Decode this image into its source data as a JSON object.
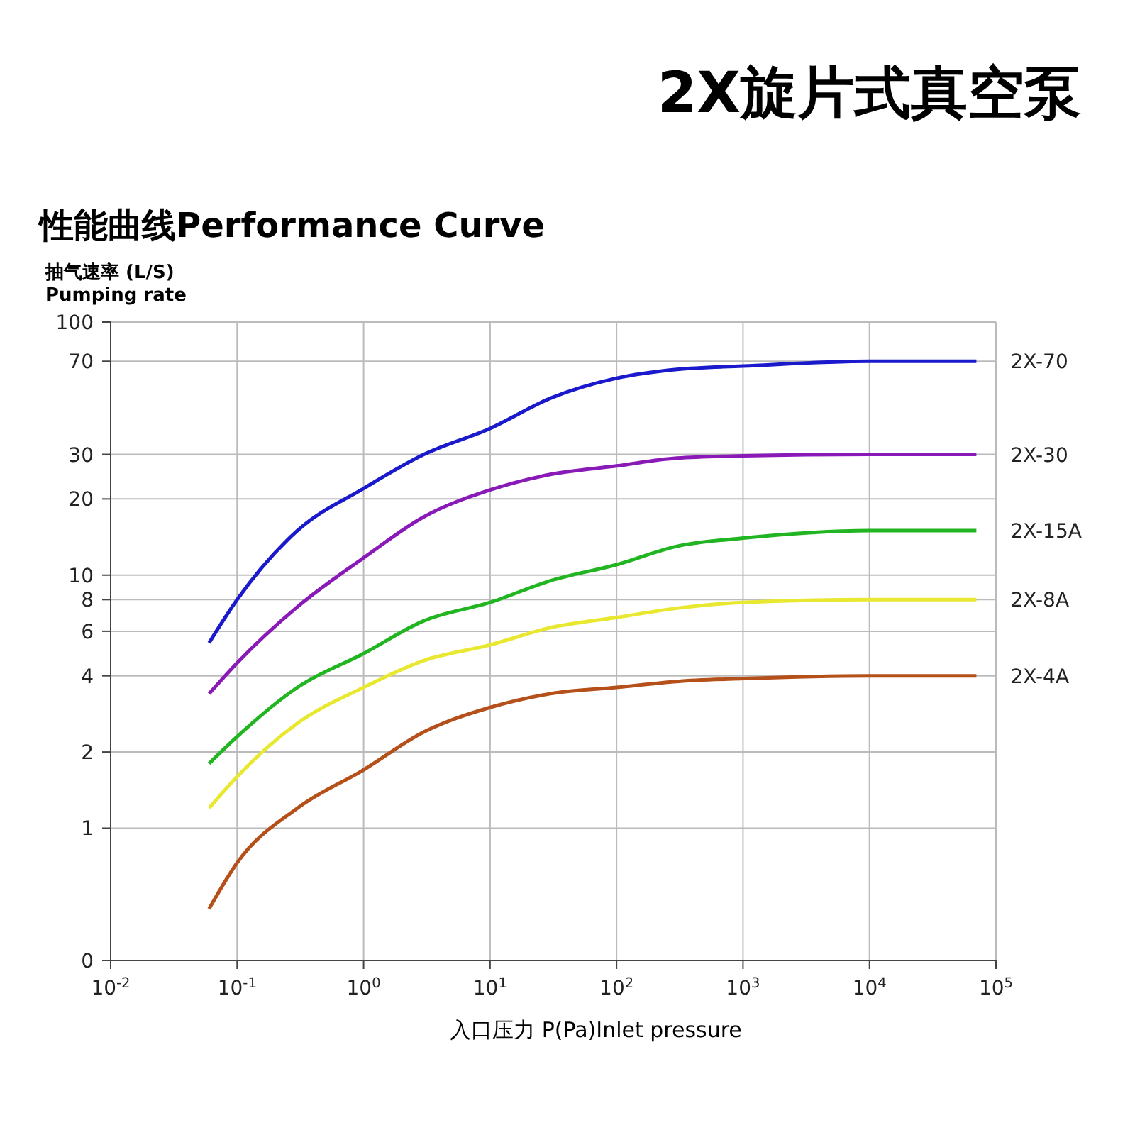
{
  "chart_data": {
    "type": "line",
    "title": "2X旋片式真空泵",
    "subtitle": "性能曲线Performance Curve",
    "xlabel": "入口压力 P(Pa)Inlet pressure",
    "ylabel": "抽气速率 (L/S)\nPumping rate",
    "x": [
      0.06,
      0.1,
      0.3,
      1,
      3,
      10,
      30,
      100,
      300,
      1000,
      10000,
      70000
    ],
    "series": [
      {
        "name": "2X-70",
        "color": "#1a1acc",
        "values": [
          5.4,
          8,
          15,
          22,
          30,
          38,
          50,
          60,
          65,
          67,
          70,
          70
        ]
      },
      {
        "name": "2X-30",
        "color": "#8a1ab8",
        "values": [
          3.4,
          4.5,
          7.5,
          11.7,
          17,
          21.7,
          25,
          27,
          29,
          29.6,
          30,
          30
        ]
      },
      {
        "name": "2X-15A",
        "color": "#22b522",
        "values": [
          1.8,
          2.3,
          3.6,
          4.9,
          6.6,
          7.8,
          9.5,
          11,
          13,
          14,
          15,
          15
        ]
      },
      {
        "name": "2X-8A",
        "color": "#e8e830",
        "values": [
          1.2,
          1.6,
          2.6,
          3.6,
          4.6,
          5.3,
          6.2,
          6.8,
          7.4,
          7.8,
          8,
          8
        ]
      },
      {
        "name": "2X-4A",
        "color": "#b5501a",
        "values": [
          0.48,
          0.73,
          1.2,
          1.7,
          2.4,
          3,
          3.4,
          3.6,
          3.8,
          3.9,
          4,
          4
        ]
      }
    ],
    "xlim": [
      0.01,
      100000
    ],
    "xticks": [
      {
        "value": 0.01,
        "label": "10$^{-2}$"
      },
      {
        "value": 0.1,
        "label": "10$^{-1}$"
      },
      {
        "value": 1,
        "label": "10$^{0}$"
      },
      {
        "value": 10,
        "label": "10$^{1}$"
      },
      {
        "value": 100,
        "label": "10$^{2}$"
      },
      {
        "value": 1000,
        "label": "10$^{3}$"
      },
      {
        "value": 10000,
        "label": "10$^{4}$"
      },
      {
        "value": 100000,
        "label": "10$^{5}$"
      }
    ],
    "log": "xy",
    "ylim": [
      0.3,
      100
    ],
    "yticks": [
      {
        "value": 0.3,
        "label": "0"
      },
      1,
      2,
      4,
      6,
      8,
      10,
      20,
      30,
      70,
      100
    ],
    "grid": true,
    "legend": false,
    "marker": "none",
    "line_style": "solid"
  }
}
